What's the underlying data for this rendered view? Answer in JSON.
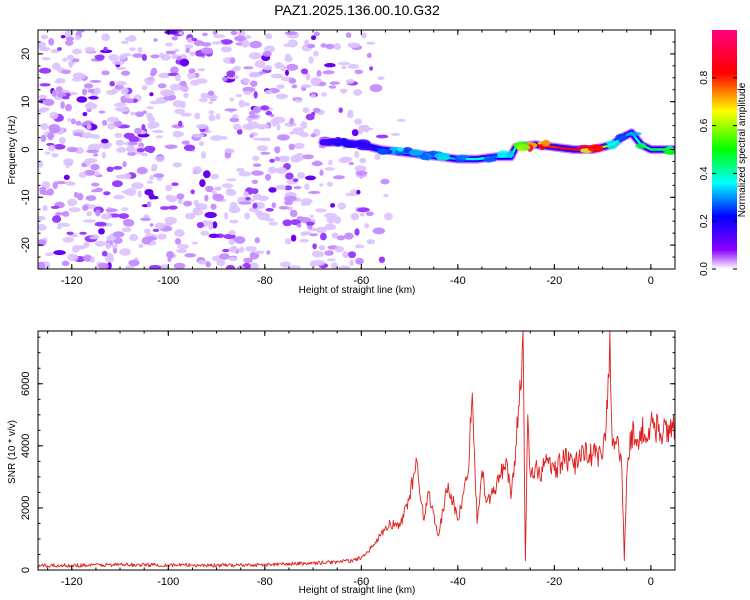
{
  "title": "PAZ1.2025.136.00.10.G32",
  "chart_data": [
    {
      "type": "heatmap",
      "xlabel": "Height of straight line (km)",
      "ylabel": "Frequency (Hz)",
      "xlim": [
        -127,
        5
      ],
      "ylim": [
        -25,
        25
      ],
      "xticks": [
        -120,
        -100,
        -80,
        -60,
        -40,
        -20,
        0
      ],
      "yticks": [
        -20,
        -10,
        0,
        10,
        20
      ],
      "colorbar": {
        "label": "Normalized spectral amplitude",
        "range": [
          0,
          1
        ],
        "ticks": [
          0.0,
          0.2,
          0.4,
          0.6,
          0.8
        ],
        "colormap": [
          "#ffffff",
          "#8b00ff",
          "#0000ff",
          "#00ffff",
          "#00ff00",
          "#ffff00",
          "#ff0000",
          "#ff007f"
        ]
      },
      "noise_region_x": [
        -127,
        -55
      ],
      "noise_region_y": [
        -25,
        25
      ],
      "signal_ridge": {
        "x": [
          -68,
          -64,
          -60,
          -56,
          -52,
          -48,
          -44,
          -40,
          -36,
          -32,
          -29,
          -28,
          -24,
          -20,
          -16,
          -12,
          -8,
          -6,
          -4,
          -2,
          0,
          5
        ],
        "frequency": [
          1.5,
          1.5,
          1.0,
          0.0,
          -0.5,
          -1.0,
          -1.5,
          -2.0,
          -2.0,
          -1.5,
          -1.5,
          0.5,
          1.0,
          0.5,
          0.0,
          0.0,
          1.0,
          2.5,
          3.5,
          1.0,
          0.0,
          0.0
        ],
        "amplitude": [
          0.15,
          0.2,
          0.2,
          0.25,
          0.35,
          0.3,
          0.35,
          0.3,
          0.4,
          0.35,
          0.3,
          0.45,
          0.85,
          0.8,
          0.85,
          0.8,
          0.5,
          0.35,
          0.3,
          0.4,
          0.45,
          0.45
        ]
      }
    },
    {
      "type": "line",
      "xlabel": "Height of straight line (km)",
      "ylabel": "SNR (10 * v/v)",
      "xlim": [
        -127,
        5
      ],
      "ylim": [
        0,
        7700
      ],
      "xticks": [
        -120,
        -100,
        -80,
        -60,
        -40,
        -20,
        0
      ],
      "yticks": [
        0,
        2000,
        4000,
        6000
      ],
      "line_color": "#e02020",
      "series": [
        {
          "x": [
            -127,
            -120,
            -110,
            -100,
            -90,
            -80,
            -70,
            -65,
            -62,
            -60,
            -58,
            -56,
            -54,
            -52,
            -50,
            -48.5,
            -47,
            -46,
            -44,
            -42,
            -40,
            -38,
            -37,
            -36,
            -35,
            -34,
            -32,
            -30,
            -29,
            -28,
            -27,
            -26.5,
            -26,
            -25.5,
            -25,
            -24,
            -23,
            -22,
            -20,
            -18,
            -16,
            -14,
            -12,
            -10,
            -9,
            -8.5,
            -8,
            -7,
            -6,
            -5.5,
            -5,
            -4,
            -3,
            -2,
            -1,
            0,
            2,
            5
          ],
          "y": [
            130,
            150,
            170,
            160,
            150,
            170,
            220,
            260,
            300,
            400,
            700,
            1100,
            1500,
            1400,
            2400,
            3500,
            1600,
            2500,
            1100,
            2800,
            1600,
            3000,
            5700,
            1500,
            3200,
            2200,
            2700,
            3600,
            2300,
            4000,
            5800,
            7700,
            300,
            5000,
            3100,
            3300,
            3000,
            3500,
            3200,
            3600,
            3300,
            3900,
            3700,
            3600,
            5200,
            7700,
            4000,
            4300,
            3200,
            300,
            3000,
            4500,
            4000,
            4600,
            4100,
            4800,
            4400,
            4700
          ]
        }
      ]
    }
  ]
}
